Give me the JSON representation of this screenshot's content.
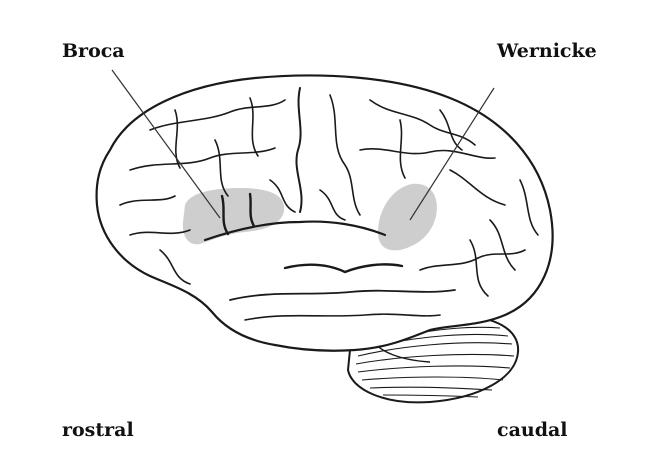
{
  "labels": {
    "broca": "Broca",
    "wernicke": "Wernicke",
    "rostral": "rostral",
    "caudal": "caudal"
  },
  "colors": {
    "outline": "#1a1a1a",
    "brain_fill": "#ffffff",
    "area_highlight": "#c9c9c9",
    "pointer_line": "#333333",
    "text": "#111111"
  }
}
